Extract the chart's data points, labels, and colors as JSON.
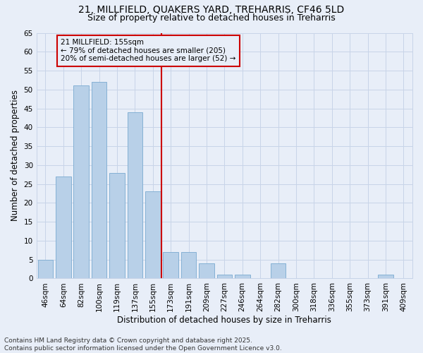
{
  "title_line1": "21, MILLFIELD, QUAKERS YARD, TREHARRIS, CF46 5LD",
  "title_line2": "Size of property relative to detached houses in Treharris",
  "xlabel": "Distribution of detached houses by size in Treharris",
  "ylabel": "Number of detached properties",
  "categories": [
    "46sqm",
    "64sqm",
    "82sqm",
    "100sqm",
    "119sqm",
    "137sqm",
    "155sqm",
    "173sqm",
    "191sqm",
    "209sqm",
    "227sqm",
    "246sqm",
    "264sqm",
    "282sqm",
    "300sqm",
    "318sqm",
    "336sqm",
    "355sqm",
    "373sqm",
    "391sqm",
    "409sqm"
  ],
  "values": [
    5,
    27,
    51,
    52,
    28,
    44,
    23,
    7,
    7,
    4,
    1,
    1,
    0,
    4,
    0,
    0,
    0,
    0,
    0,
    1,
    0
  ],
  "bar_color": "#b8d0e8",
  "bar_edge_color": "#7aaad0",
  "highlight_index": 6,
  "highlight_line_color": "#cc0000",
  "annotation_text": "21 MILLFIELD: 155sqm\n← 79% of detached houses are smaller (205)\n20% of semi-detached houses are larger (52) →",
  "ylim": [
    0,
    65
  ],
  "yticks": [
    0,
    5,
    10,
    15,
    20,
    25,
    30,
    35,
    40,
    45,
    50,
    55,
    60,
    65
  ],
  "grid_color": "#c8d4e8",
  "background_color": "#e8eef8",
  "footer_text": "Contains HM Land Registry data © Crown copyright and database right 2025.\nContains public sector information licensed under the Open Government Licence v3.0.",
  "title_fontsize": 10,
  "subtitle_fontsize": 9,
  "axis_label_fontsize": 8.5,
  "tick_fontsize": 7.5,
  "annotation_fontsize": 7.5,
  "footer_fontsize": 6.5
}
